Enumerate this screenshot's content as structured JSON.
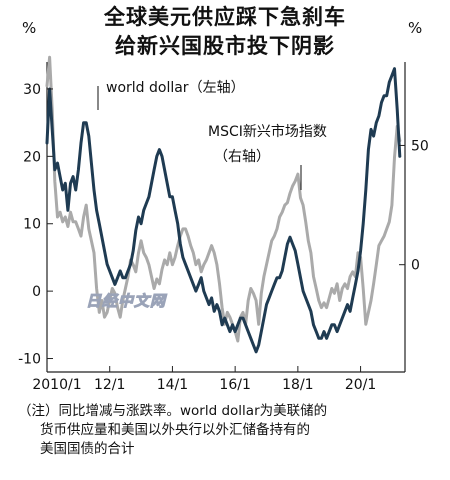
{
  "title": {
    "line1": "全球美元供应踩下急刹车",
    "line2": "给新兴国股市投下阴影"
  },
  "watermark": "日经中文网",
  "note": {
    "line1": "（注）同比增减与涨跌率。world dollar为美联储的",
    "line2": "货币供应量和美国以外央行以外汇储备持有的",
    "line3": "美国国债的合计"
  },
  "chart_data": {
    "type": "line",
    "left_axis": {
      "unit": "%",
      "ticks": [
        30,
        20,
        10,
        0,
        -10
      ],
      "range": [
        -12,
        34
      ]
    },
    "right_axis": {
      "unit": "%",
      "ticks": [
        50,
        0
      ],
      "range": [
        -45,
        85
      ]
    },
    "x_axis": {
      "tick_labels": [
        "2010/1",
        "12/1",
        "14/1",
        "16/1",
        "18/1",
        "20/1"
      ],
      "range": [
        "2010-01",
        "2021-06"
      ]
    },
    "series": [
      {
        "name": "world dollar（左轴）",
        "axis": "left",
        "color": "#1f3b52",
        "points": [
          [
            "2010-01",
            22
          ],
          [
            "2010-02",
            30
          ],
          [
            "2010-03",
            24
          ],
          [
            "2010-04",
            18
          ],
          [
            "2010-05",
            19
          ],
          [
            "2010-06",
            17
          ],
          [
            "2010-07",
            15
          ],
          [
            "2010-08",
            16
          ],
          [
            "2010-09",
            12
          ],
          [
            "2010-10",
            16
          ],
          [
            "2010-11",
            17
          ],
          [
            "2010-12",
            15
          ],
          [
            "2011-01",
            18
          ],
          [
            "2011-02",
            22
          ],
          [
            "2011-03",
            25
          ],
          [
            "2011-04",
            25
          ],
          [
            "2011-05",
            23
          ],
          [
            "2011-06",
            19
          ],
          [
            "2011-07",
            15
          ],
          [
            "2011-08",
            12
          ],
          [
            "2011-09",
            10
          ],
          [
            "2011-10",
            8
          ],
          [
            "2011-11",
            6
          ],
          [
            "2011-12",
            4
          ],
          [
            "2012-01",
            3
          ],
          [
            "2012-02",
            2
          ],
          [
            "2012-03",
            1
          ],
          [
            "2012-04",
            2
          ],
          [
            "2012-05",
            3
          ],
          [
            "2012-06",
            2
          ],
          [
            "2012-07",
            2
          ],
          [
            "2012-08",
            3
          ],
          [
            "2012-09",
            4
          ],
          [
            "2012-10",
            6
          ],
          [
            "2012-11",
            9
          ],
          [
            "2012-12",
            11
          ],
          [
            "2013-01",
            10
          ],
          [
            "2013-02",
            12
          ],
          [
            "2013-03",
            13
          ],
          [
            "2013-04",
            14
          ],
          [
            "2013-05",
            16
          ],
          [
            "2013-06",
            18
          ],
          [
            "2013-07",
            20
          ],
          [
            "2013-08",
            21
          ],
          [
            "2013-09",
            20
          ],
          [
            "2013-10",
            18
          ],
          [
            "2013-11",
            16
          ],
          [
            "2013-12",
            14
          ],
          [
            "2014-01",
            14
          ],
          [
            "2014-02",
            12
          ],
          [
            "2014-03",
            10
          ],
          [
            "2014-04",
            7
          ],
          [
            "2014-05",
            5
          ],
          [
            "2014-06",
            4
          ],
          [
            "2014-07",
            3
          ],
          [
            "2014-08",
            2
          ],
          [
            "2014-09",
            1
          ],
          [
            "2014-10",
            0
          ],
          [
            "2014-11",
            1
          ],
          [
            "2014-12",
            2
          ],
          [
            "2015-01",
            0
          ],
          [
            "2015-02",
            -1
          ],
          [
            "2015-03",
            -2
          ],
          [
            "2015-04",
            -1
          ],
          [
            "2015-05",
            -3
          ],
          [
            "2015-06",
            -2
          ],
          [
            "2015-07",
            -3
          ],
          [
            "2015-08",
            -5
          ],
          [
            "2015-09",
            -4
          ],
          [
            "2015-10",
            -5
          ],
          [
            "2015-11",
            -6
          ],
          [
            "2015-12",
            -5
          ],
          [
            "2016-01",
            -6
          ],
          [
            "2016-02",
            -5
          ],
          [
            "2016-03",
            -4
          ],
          [
            "2016-04",
            -4
          ],
          [
            "2016-05",
            -5
          ],
          [
            "2016-06",
            -6
          ],
          [
            "2016-07",
            -7
          ],
          [
            "2016-08",
            -8
          ],
          [
            "2016-09",
            -9
          ],
          [
            "2016-10",
            -8
          ],
          [
            "2016-11",
            -6
          ],
          [
            "2016-12",
            -4
          ],
          [
            "2017-01",
            -2
          ],
          [
            "2017-02",
            -1
          ],
          [
            "2017-03",
            0
          ],
          [
            "2017-04",
            1
          ],
          [
            "2017-05",
            2
          ],
          [
            "2017-06",
            2
          ],
          [
            "2017-07",
            3
          ],
          [
            "2017-08",
            5
          ],
          [
            "2017-09",
            7
          ],
          [
            "2017-10",
            8
          ],
          [
            "2017-11",
            7
          ],
          [
            "2017-12",
            6
          ],
          [
            "2018-01",
            4
          ],
          [
            "2018-02",
            2
          ],
          [
            "2018-03",
            0
          ],
          [
            "2018-04",
            -1
          ],
          [
            "2018-05",
            -2
          ],
          [
            "2018-06",
            -3
          ],
          [
            "2018-07",
            -5
          ],
          [
            "2018-08",
            -6
          ],
          [
            "2018-09",
            -7
          ],
          [
            "2018-10",
            -7
          ],
          [
            "2018-11",
            -6
          ],
          [
            "2018-12",
            -7
          ],
          [
            "2019-01",
            -6
          ],
          [
            "2019-02",
            -5
          ],
          [
            "2019-03",
            -5
          ],
          [
            "2019-04",
            -6
          ],
          [
            "2019-05",
            -5
          ],
          [
            "2019-06",
            -4
          ],
          [
            "2019-07",
            -3
          ],
          [
            "2019-08",
            -2
          ],
          [
            "2019-09",
            -3
          ],
          [
            "2019-10",
            -1
          ],
          [
            "2019-11",
            1
          ],
          [
            "2019-12",
            3
          ],
          [
            "2020-01",
            6
          ],
          [
            "2020-02",
            10
          ],
          [
            "2020-03",
            15
          ],
          [
            "2020-04",
            21
          ],
          [
            "2020-05",
            24
          ],
          [
            "2020-06",
            23
          ],
          [
            "2020-07",
            25
          ],
          [
            "2020-08",
            26
          ],
          [
            "2020-09",
            28
          ],
          [
            "2020-10",
            29
          ],
          [
            "2020-11",
            29
          ],
          [
            "2020-12",
            31
          ],
          [
            "2021-01",
            32
          ],
          [
            "2021-02",
            33
          ],
          [
            "2021-03",
            27
          ],
          [
            "2021-04",
            20
          ]
        ]
      },
      {
        "name": "MSCI新兴市场指数（右轴）",
        "axis": "right",
        "color": "#aaaaaa",
        "points": [
          [
            "2010-01",
            75
          ],
          [
            "2010-02",
            87
          ],
          [
            "2010-03",
            65
          ],
          [
            "2010-04",
            35
          ],
          [
            "2010-05",
            20
          ],
          [
            "2010-06",
            22
          ],
          [
            "2010-07",
            18
          ],
          [
            "2010-08",
            20
          ],
          [
            "2010-09",
            16
          ],
          [
            "2010-10",
            22
          ],
          [
            "2010-11",
            18
          ],
          [
            "2010-12",
            18
          ],
          [
            "2011-01",
            15
          ],
          [
            "2011-02",
            12
          ],
          [
            "2011-03",
            20
          ],
          [
            "2011-04",
            25
          ],
          [
            "2011-05",
            15
          ],
          [
            "2011-06",
            10
          ],
          [
            "2011-07",
            5
          ],
          [
            "2011-08",
            -10
          ],
          [
            "2011-09",
            -20
          ],
          [
            "2011-10",
            -15
          ],
          [
            "2011-11",
            -22
          ],
          [
            "2011-12",
            -20
          ],
          [
            "2012-01",
            -15
          ],
          [
            "2012-02",
            -10
          ],
          [
            "2012-03",
            -12
          ],
          [
            "2012-04",
            -18
          ],
          [
            "2012-05",
            -22
          ],
          [
            "2012-06",
            -15
          ],
          [
            "2012-07",
            -10
          ],
          [
            "2012-08",
            -5
          ],
          [
            "2012-09",
            2
          ],
          [
            "2012-10",
            0
          ],
          [
            "2012-11",
            -3
          ],
          [
            "2012-12",
            5
          ],
          [
            "2013-01",
            10
          ],
          [
            "2013-02",
            5
          ],
          [
            "2013-03",
            3
          ],
          [
            "2013-04",
            0
          ],
          [
            "2013-05",
            -5
          ],
          [
            "2013-06",
            -10
          ],
          [
            "2013-07",
            -6
          ],
          [
            "2013-08",
            -8
          ],
          [
            "2013-09",
            -2
          ],
          [
            "2013-10",
            2
          ],
          [
            "2013-11",
            0
          ],
          [
            "2013-12",
            5
          ],
          [
            "2014-01",
            0
          ],
          [
            "2014-02",
            3
          ],
          [
            "2014-03",
            8
          ],
          [
            "2014-04",
            12
          ],
          [
            "2014-05",
            15
          ],
          [
            "2014-06",
            15
          ],
          [
            "2014-07",
            12
          ],
          [
            "2014-08",
            8
          ],
          [
            "2014-09",
            5
          ],
          [
            "2014-10",
            0
          ],
          [
            "2014-11",
            2
          ],
          [
            "2014-12",
            -3
          ],
          [
            "2015-01",
            0
          ],
          [
            "2015-02",
            2
          ],
          [
            "2015-03",
            5
          ],
          [
            "2015-04",
            8
          ],
          [
            "2015-05",
            5
          ],
          [
            "2015-06",
            0
          ],
          [
            "2015-07",
            -8
          ],
          [
            "2015-08",
            -18
          ],
          [
            "2015-09",
            -25
          ],
          [
            "2015-10",
            -20
          ],
          [
            "2015-11",
            -22
          ],
          [
            "2015-12",
            -25
          ],
          [
            "2016-01",
            -28
          ],
          [
            "2016-02",
            -32
          ],
          [
            "2016-03",
            -22
          ],
          [
            "2016-04",
            -20
          ],
          [
            "2016-05",
            -25
          ],
          [
            "2016-06",
            -15
          ],
          [
            "2016-07",
            -10
          ],
          [
            "2016-08",
            -12
          ],
          [
            "2016-09",
            -15
          ],
          [
            "2016-10",
            -25
          ],
          [
            "2016-11",
            -12
          ],
          [
            "2016-12",
            -5
          ],
          [
            "2017-01",
            0
          ],
          [
            "2017-02",
            5
          ],
          [
            "2017-03",
            10
          ],
          [
            "2017-04",
            12
          ],
          [
            "2017-05",
            15
          ],
          [
            "2017-06",
            20
          ],
          [
            "2017-07",
            22
          ],
          [
            "2017-08",
            25
          ],
          [
            "2017-09",
            26
          ],
          [
            "2017-10",
            30
          ],
          [
            "2017-11",
            33
          ],
          [
            "2017-12",
            35
          ],
          [
            "2018-01",
            38
          ],
          [
            "2018-02",
            28
          ],
          [
            "2018-03",
            25
          ],
          [
            "2018-04",
            18
          ],
          [
            "2018-05",
            10
          ],
          [
            "2018-06",
            5
          ],
          [
            "2018-07",
            -5
          ],
          [
            "2018-08",
            -10
          ],
          [
            "2018-09",
            -15
          ],
          [
            "2018-10",
            -18
          ],
          [
            "2018-11",
            -16
          ],
          [
            "2018-12",
            -18
          ],
          [
            "2019-01",
            -14
          ],
          [
            "2019-02",
            -10
          ],
          [
            "2019-03",
            -12
          ],
          [
            "2019-04",
            -8
          ],
          [
            "2019-05",
            -15
          ],
          [
            "2019-06",
            -10
          ],
          [
            "2019-07",
            -8
          ],
          [
            "2019-08",
            -10
          ],
          [
            "2019-09",
            -5
          ],
          [
            "2019-10",
            -3
          ],
          [
            "2019-11",
            -5
          ],
          [
            "2019-12",
            5
          ],
          [
            "2020-01",
            3
          ],
          [
            "2020-02",
            -10
          ],
          [
            "2020-03",
            -25
          ],
          [
            "2020-04",
            -20
          ],
          [
            "2020-05",
            -15
          ],
          [
            "2020-06",
            -8
          ],
          [
            "2020-07",
            0
          ],
          [
            "2020-08",
            8
          ],
          [
            "2020-09",
            10
          ],
          [
            "2020-10",
            12
          ],
          [
            "2020-11",
            15
          ],
          [
            "2020-12",
            18
          ],
          [
            "2021-01",
            25
          ],
          [
            "2021-02",
            45
          ],
          [
            "2021-03",
            58
          ],
          [
            "2021-04",
            52
          ]
        ]
      }
    ],
    "annotations": [
      {
        "text": "world dollar（左轴）",
        "series": 0
      },
      {
        "text": "MSCI新兴市场指数",
        "text2": "（右轴）",
        "series": 1
      }
    ]
  }
}
